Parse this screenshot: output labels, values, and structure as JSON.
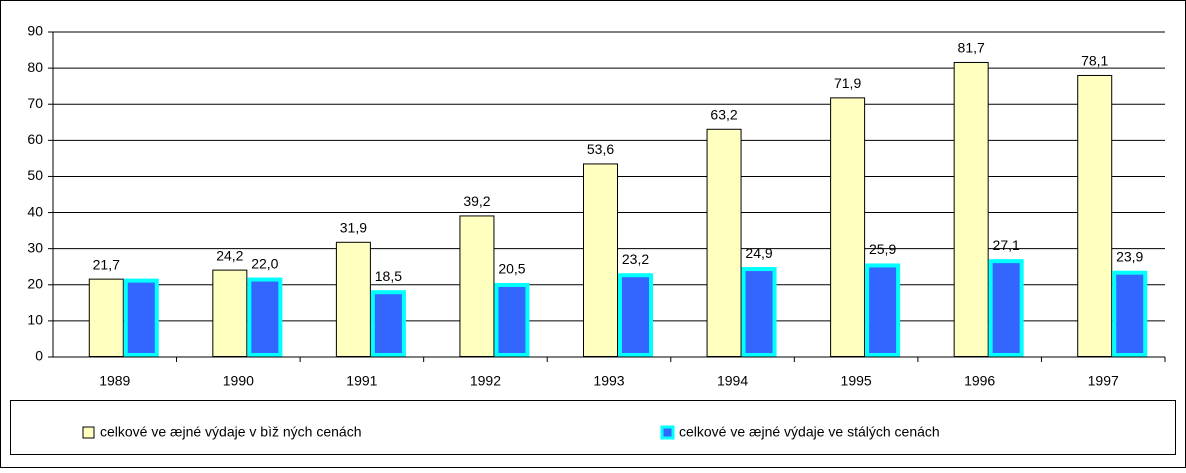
{
  "chart_data": {
    "type": "bar",
    "categories": [
      "1989",
      "1990",
      "1991",
      "1992",
      "1993",
      "1994",
      "1995",
      "1996",
      "1997"
    ],
    "series": [
      {
        "name": "celkové ve æjné výdaje v bìž ných cenách",
        "color": "#ffffc0",
        "edgecolor": "#000000",
        "values": [
          21.7,
          24.2,
          31.9,
          39.2,
          53.6,
          63.2,
          71.9,
          81.7,
          78.1
        ],
        "value_labels": [
          "21,7",
          "24,2",
          "31,9",
          "39,2",
          "53,6",
          "63,2",
          "71,9",
          "81,7",
          "78,1"
        ]
      },
      {
        "name": "celkové ve æjné výdaje ve stálých cenách",
        "color": "#3366ff",
        "edgecolor": "#00ffff",
        "values": [
          21.7,
          22.0,
          18.5,
          20.5,
          23.2,
          24.9,
          25.9,
          27.1,
          23.9
        ],
        "value_labels": [
          "",
          "22,0",
          "18,5",
          "20,5",
          "23,2",
          "24,9",
          "25,9",
          "27,1",
          "23,9"
        ]
      }
    ],
    "ylim": [
      0,
      90
    ],
    "yticks": [
      0,
      10,
      20,
      30,
      40,
      50,
      60,
      70,
      80,
      90
    ],
    "grid": true,
    "legend": "bottom"
  }
}
